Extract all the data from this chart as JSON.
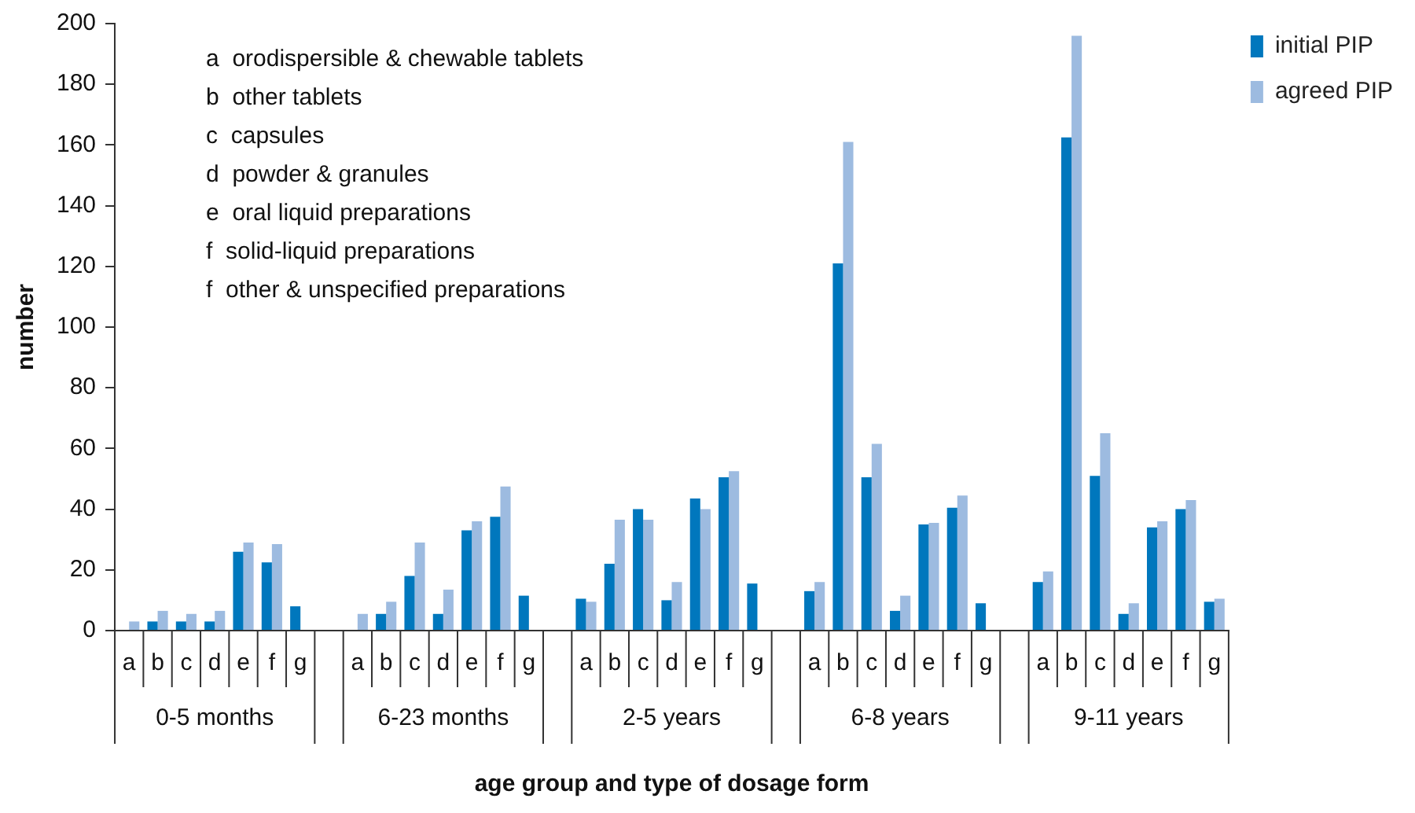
{
  "chart_data": {
    "type": "bar",
    "xlabel": "age group and type of dosage form",
    "ylabel": "number",
    "categories": [
      "a",
      "b",
      "c",
      "d",
      "e",
      "f",
      "g",
      null,
      "a",
      "b",
      "c",
      "d",
      "e",
      "f",
      "g",
      null,
      "a",
      "b",
      "c",
      "d",
      "e",
      "f",
      "g",
      null,
      "a",
      "b",
      "c",
      "d",
      "e",
      "f",
      "g",
      null,
      "a",
      "b",
      "c",
      "d",
      "e",
      "f",
      "g"
    ],
    "series": [
      {
        "name": "initial PIP",
        "color": "#0077bd",
        "values": [
          0,
          3,
          3,
          3,
          26,
          22.5,
          8,
          null,
          0,
          5.5,
          18,
          5.5,
          33,
          37.5,
          11.5,
          null,
          10.5,
          22,
          40,
          10,
          43.5,
          50.5,
          15.5,
          null,
          13,
          121,
          50.5,
          6.5,
          35,
          40.5,
          9,
          null,
          16,
          162.5,
          51,
          5.5,
          34,
          40,
          9.5
        ]
      },
      {
        "name": "agreed PIP",
        "color": "#9dbbe0",
        "values": [
          3,
          6.5,
          5.5,
          6.5,
          29,
          28.5,
          0,
          null,
          5.5,
          9.5,
          29,
          13.5,
          36,
          47.5,
          0,
          null,
          9.5,
          36.5,
          36.5,
          16,
          40,
          52.5,
          0,
          null,
          16,
          161,
          61.5,
          11.5,
          35.5,
          44.5,
          0,
          null,
          19.5,
          196,
          65,
          9,
          36,
          43,
          10.5
        ]
      }
    ],
    "ylim": [
      0,
      200
    ],
    "yticks": [
      0,
      20,
      40,
      60,
      80,
      100,
      120,
      140,
      160,
      180,
      200
    ],
    "legend": "top right",
    "annotations": [
      "a  orodispersible & chewable tablets",
      "b  other tablets",
      "c  capsules",
      "d  powder & granules",
      "e  oral liquid preparations",
      "f  solid-liquid preparations",
      "f  other & unspecified preparations",
      "0-5 months",
      "6-23 months",
      "2-5 years",
      "6-8 years",
      "9-11 years"
    ]
  }
}
